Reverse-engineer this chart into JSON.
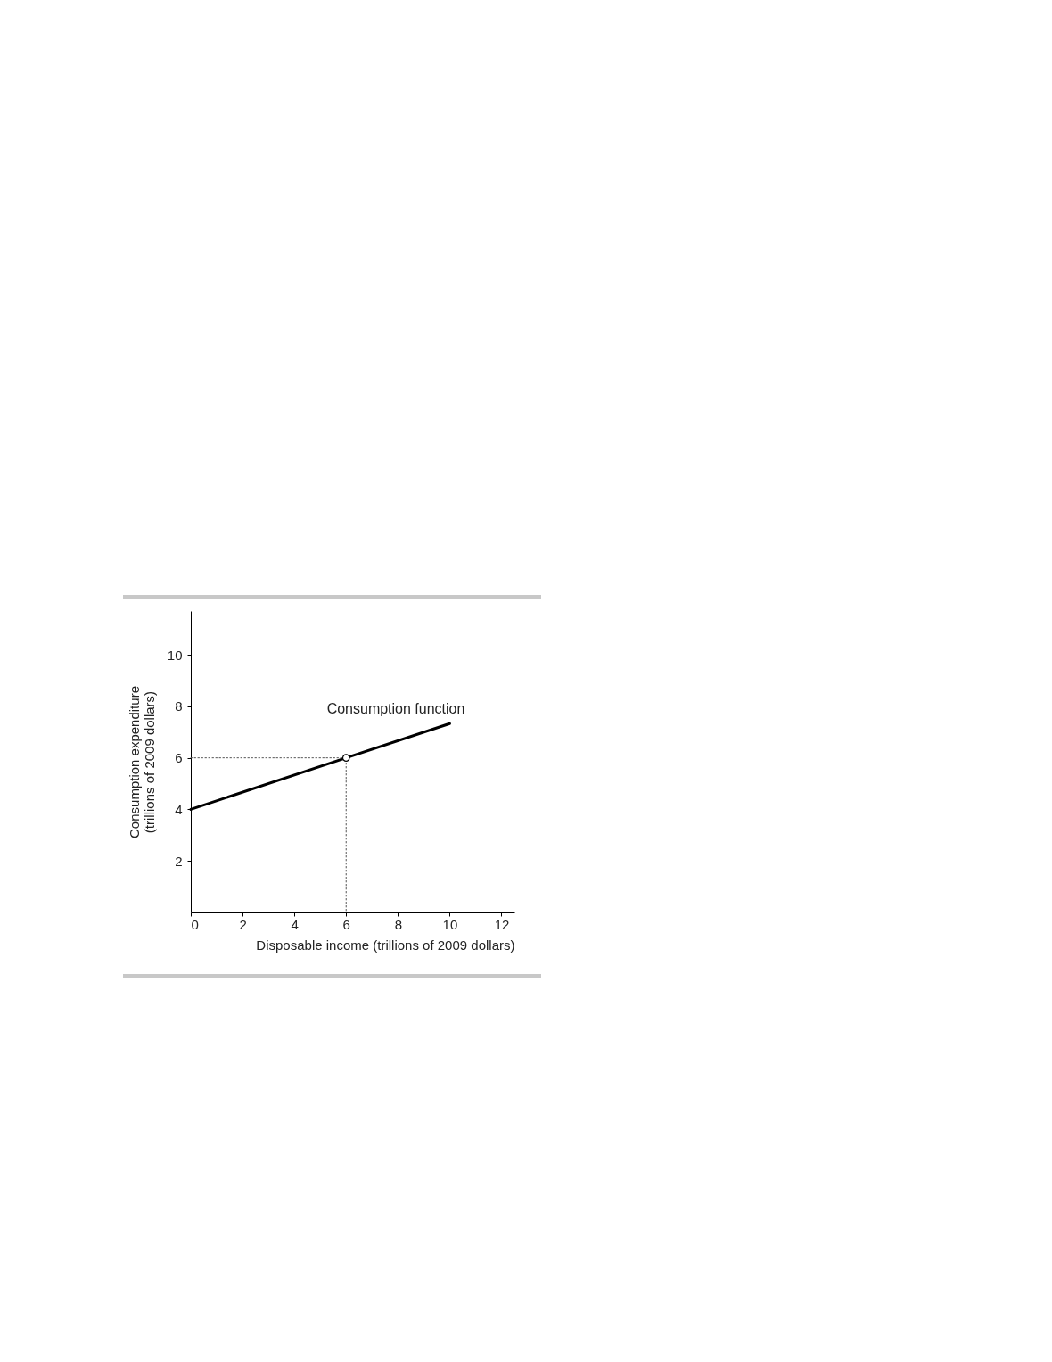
{
  "chart_data": {
    "type": "line",
    "xlabel": "Disposable income (trillions of 2009 dollars)",
    "ylabel": "Consumption expenditure\n(trillions of 2009 dollars)",
    "xlim": [
      0,
      12.5
    ],
    "ylim": [
      0,
      11.7
    ],
    "xticks": [
      0,
      2,
      4,
      6,
      8,
      10,
      12
    ],
    "yticks": [
      2,
      4,
      6,
      8,
      10
    ],
    "grid": false,
    "series": [
      {
        "color": "#000000",
        "x": [
          0,
          6,
          10
        ],
        "values": [
          4,
          6,
          7.33
        ],
        "line_style": "solid",
        "marker": "none"
      },
      {
        "color": "#555555",
        "x": [
          0,
          6,
          6
        ],
        "values": [
          6,
          6,
          0
        ],
        "line_style": "dotted",
        "marker": "none"
      },
      {
        "type": "scatter",
        "color": "#000000",
        "x": [
          6
        ],
        "values": [
          6
        ],
        "marker": "circle"
      }
    ],
    "annotations": [
      "Consumption function"
    ]
  }
}
